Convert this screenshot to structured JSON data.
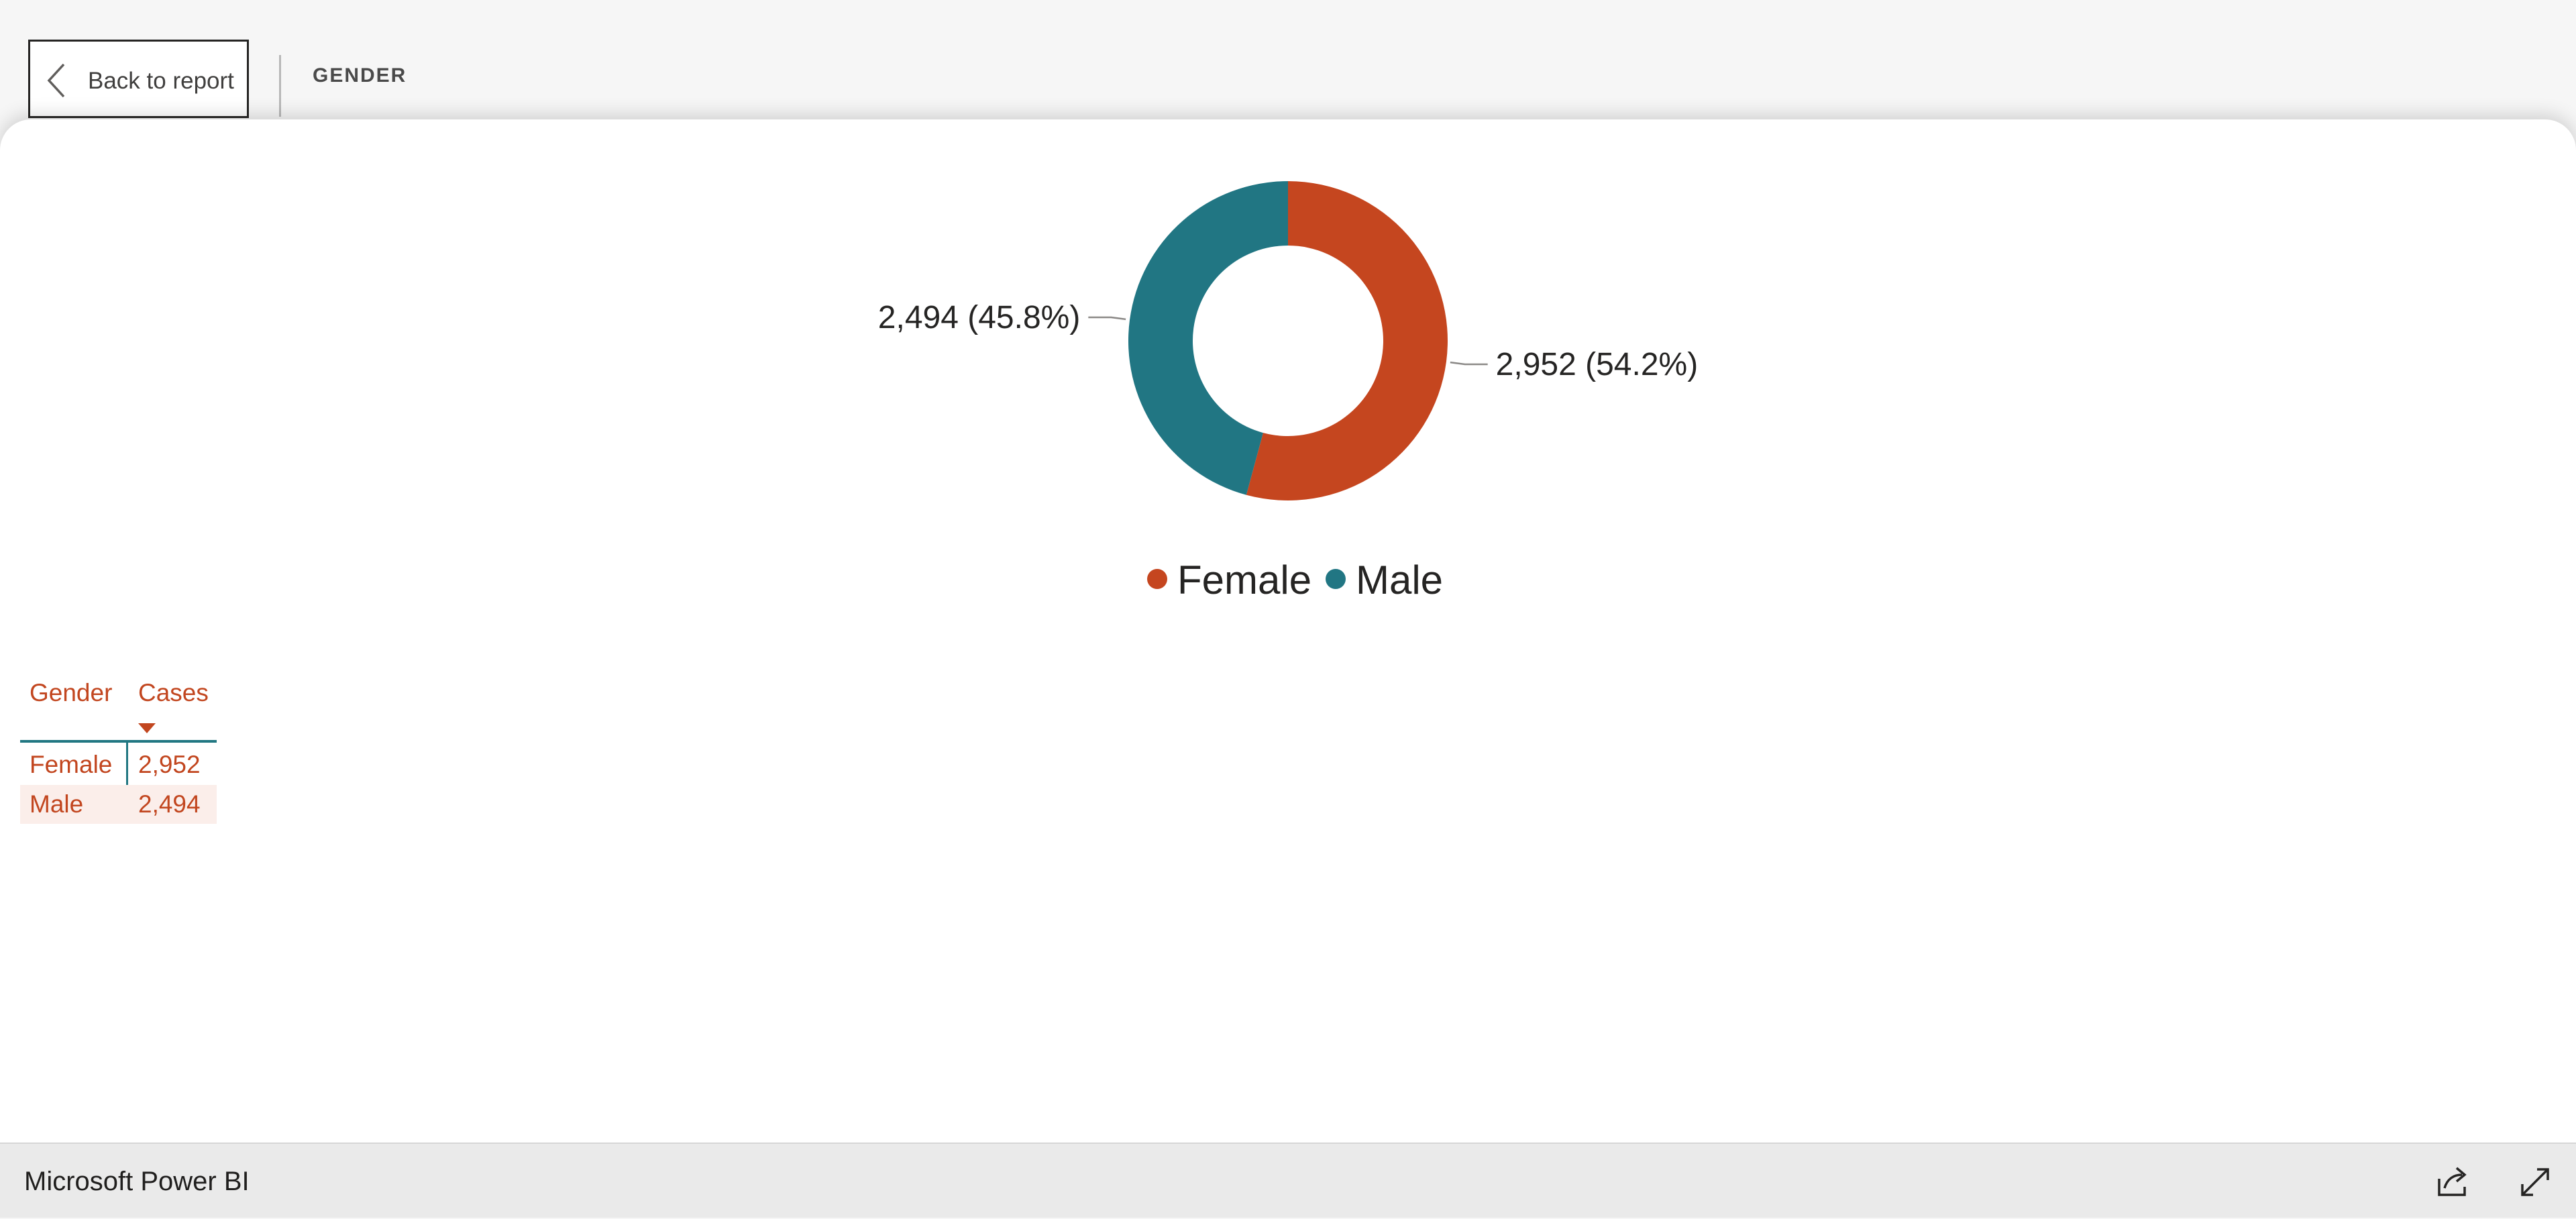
{
  "header": {
    "back_label": "Back to report",
    "page_title": "GENDER"
  },
  "chart_data": {
    "type": "pie",
    "variant": "donut",
    "categories": [
      "Female",
      "Male"
    ],
    "values": [
      2952,
      2494
    ],
    "labels": [
      "2,952 (54.2%)",
      "2,494 (45.8%)"
    ],
    "colors": [
      "#c5461f",
      "#217683"
    ],
    "legend": {
      "items": [
        "Female",
        "Male"
      ],
      "placement": "bottom"
    }
  },
  "table": {
    "headers": [
      "Gender",
      "Cases"
    ],
    "sort_column": "Cases",
    "sort_direction": "descending",
    "rows": [
      {
        "name": "Female",
        "value": "2,952"
      },
      {
        "name": "Male",
        "value": "2,494"
      }
    ]
  },
  "footer": {
    "title": "Microsoft Power BI",
    "icons": [
      "share-icon",
      "expand-icon"
    ]
  }
}
